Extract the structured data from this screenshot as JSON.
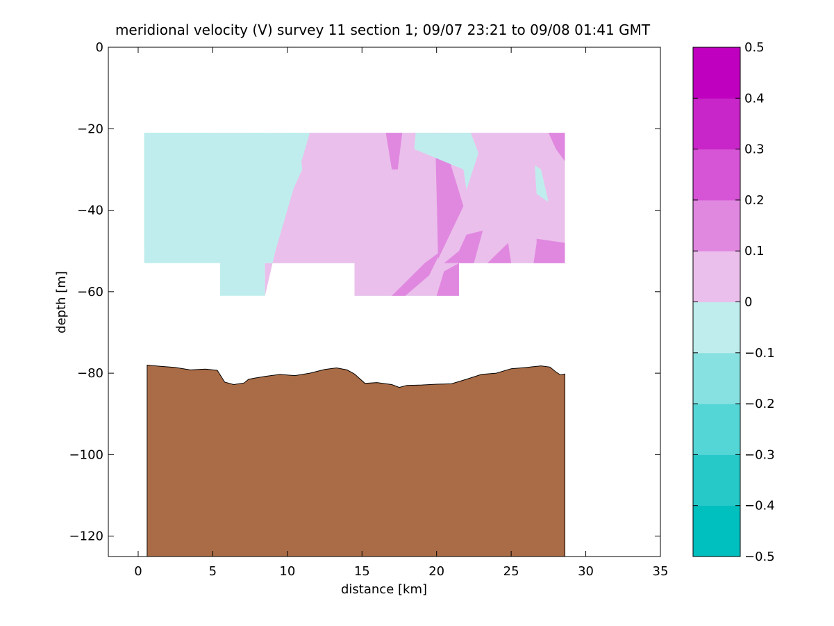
{
  "chart_data": {
    "type": "contour",
    "title": "meridional velocity (V) survey 11 section 1; 09/07 23:21 to 09/08 01:41 GMT",
    "xlabel": "distance [km]",
    "ylabel": "depth [m]",
    "xlim": [
      -2,
      35
    ],
    "ylim": [
      -125,
      0
    ],
    "x_ticks": [
      0,
      5,
      10,
      15,
      20,
      25,
      30,
      35
    ],
    "y_ticks": [
      0,
      -20,
      -40,
      -60,
      -80,
      -100,
      -120
    ],
    "grid": false,
    "colorbar": {
      "placement": "right",
      "levels": [
        -0.5,
        -0.4,
        -0.3,
        -0.2,
        -0.1,
        0,
        0.1,
        0.2,
        0.3,
        0.4,
        0.5
      ],
      "tick_labels": [
        "−0.5",
        "−0.4",
        "−0.3",
        "−0.2",
        "−0.1",
        "0",
        "0.1",
        "0.2",
        "0.3",
        "0.4",
        "0.5"
      ],
      "colors": [
        "#00bfbf",
        "#26c8c8",
        "#55d6d6",
        "#88e1e1",
        "#bfeded",
        "#ebbfeb",
        "#e088e0",
        "#d655d6",
        "#c826c8",
        "#bf00bf"
      ]
    },
    "seafloor_color": "#aa6c46",
    "seafloor": {
      "x": [
        0.6,
        0.6,
        1.5,
        2.5,
        3.5,
        4.5,
        5.3,
        5.8,
        6.4,
        7.1,
        7.4,
        7.8,
        8.5,
        9.5,
        10.5,
        11.5,
        12.5,
        13.3,
        14,
        14.5,
        15.2,
        16,
        17,
        17.5,
        18,
        19,
        20,
        21,
        22,
        23,
        24,
        25,
        26,
        27,
        27.6,
        28,
        28.3,
        28.6,
        28.6
      ],
      "depth": [
        -125,
        -78,
        -78.3,
        -78.6,
        -79.2,
        -79,
        -79.3,
        -82.2,
        -82.8,
        -82.4,
        -81.5,
        -81.2,
        -80.8,
        -80.3,
        -80.6,
        -80,
        -79.1,
        -78.7,
        -79.2,
        -80.2,
        -82.5,
        -82.3,
        -82.8,
        -83.5,
        -83,
        -82.9,
        -82.7,
        -82.6,
        -81.5,
        -80.3,
        -80,
        -78.9,
        -78.6,
        -78.2,
        -78.5,
        -79.7,
        -80.4,
        -80.2,
        -125
      ]
    },
    "data_region": {
      "x": [
        0.4,
        28.6,
        28.6,
        21.5,
        21.5,
        14.5,
        14.5,
        8.5,
        8.5,
        5.5,
        5.5,
        0.4
      ],
      "depth": [
        -21,
        -21,
        -53,
        -53,
        -61,
        -61,
        -53,
        -53,
        -61,
        -61,
        -53,
        -53
      ]
    },
    "contour_patches": [
      {
        "level": 0,
        "x": [
          11.5,
          28.6,
          28.6,
          21.5,
          21.5,
          14.5,
          14.5,
          8.5,
          8.5,
          9.2,
          11.5
        ],
        "depth": [
          -21,
          -21,
          -53,
          -53,
          -61,
          -61,
          -53,
          -53,
          -61,
          -50,
          -21
        ]
      },
      {
        "level": -1,
        "x": [
          0.4,
          3.5,
          3.5,
          2.5,
          0.4
        ],
        "depth": [
          -21,
          -21,
          -28,
          -45,
          -50
        ]
      },
      {
        "level": -1,
        "x": [
          3.8,
          5.0,
          4.2,
          3.2,
          3.0
        ],
        "depth": [
          -21,
          -21,
          -30,
          -33,
          -28
        ]
      },
      {
        "level": -1,
        "x": [
          3.2,
          6.0,
          7.5,
          5.5,
          3.8,
          3.0
        ],
        "depth": [
          -40,
          -25,
          -30,
          -45,
          -50,
          -46
        ]
      },
      {
        "level": -1,
        "x": [
          7.5,
          8.7,
          9.0,
          8.0,
          7.6
        ],
        "depth": [
          -21,
          -21,
          -28,
          -39,
          -32
        ]
      },
      {
        "level": -1,
        "x": [
          10.0,
          10.7,
          11.0,
          10.0,
          9.8
        ],
        "depth": [
          -21,
          -21,
          -30,
          -38,
          -30
        ]
      },
      {
        "level": -1,
        "x": [
          0.4,
          0.6,
          0.4
        ],
        "depth": [
          -24,
          -28,
          -32
        ]
      },
      {
        "level": 1,
        "x": [
          16.6,
          17.7,
          17.4,
          17.0
        ],
        "depth": [
          -21,
          -21,
          -30,
          -30
        ]
      },
      {
        "level": 1,
        "x": [
          27.5,
          28.6,
          28.6,
          28.0
        ],
        "depth": [
          -21,
          -21,
          -28,
          -25
        ]
      },
      {
        "level": 1,
        "x": [
          19.9,
          20.3,
          21.8,
          20.1
        ],
        "depth": [
          -21,
          -21,
          -39,
          -52
        ]
      },
      {
        "level": 1,
        "x": [
          22.0,
          23.1,
          22.5,
          20.5,
          21.5
        ],
        "depth": [
          -46,
          -45,
          -53,
          -53,
          -50
        ]
      },
      {
        "level": 1,
        "x": [
          23.4,
          24.8,
          25.0,
          23.5
        ],
        "depth": [
          -53,
          -48,
          -53,
          -53
        ]
      },
      {
        "level": 1,
        "x": [
          26.7,
          28.6,
          28.6,
          26.5,
          26.7
        ],
        "depth": [
          -47,
          -48,
          -53,
          -53,
          -48
        ]
      },
      {
        "level": 1,
        "x": [
          17.0,
          19.2,
          20.3,
          19.5,
          17.9,
          16.9
        ],
        "depth": [
          -61,
          -53,
          -50,
          -56,
          -61,
          -61
        ]
      },
      {
        "level": 1,
        "x": [
          20.5,
          21.5,
          21.5,
          20.0
        ],
        "depth": [
          -55,
          -53,
          -61,
          -61
        ]
      },
      {
        "level": -1,
        "x": [
          18.6,
          22.3,
          22.8,
          22.0,
          21.8,
          18.5,
          18.6
        ],
        "depth": [
          -21,
          -21,
          -26,
          -35,
          -30,
          -25,
          -21
        ]
      },
      {
        "level": -1,
        "x": [
          26.6,
          27.0,
          27.5,
          26.7,
          26.6
        ],
        "depth": [
          -29,
          -30,
          -38,
          -36,
          -30
        ]
      },
      {
        "level": -1,
        "x": [
          5.8,
          6.3,
          5.8,
          5.5
        ],
        "depth": [
          -53,
          -54,
          -60,
          -61
        ]
      }
    ]
  }
}
